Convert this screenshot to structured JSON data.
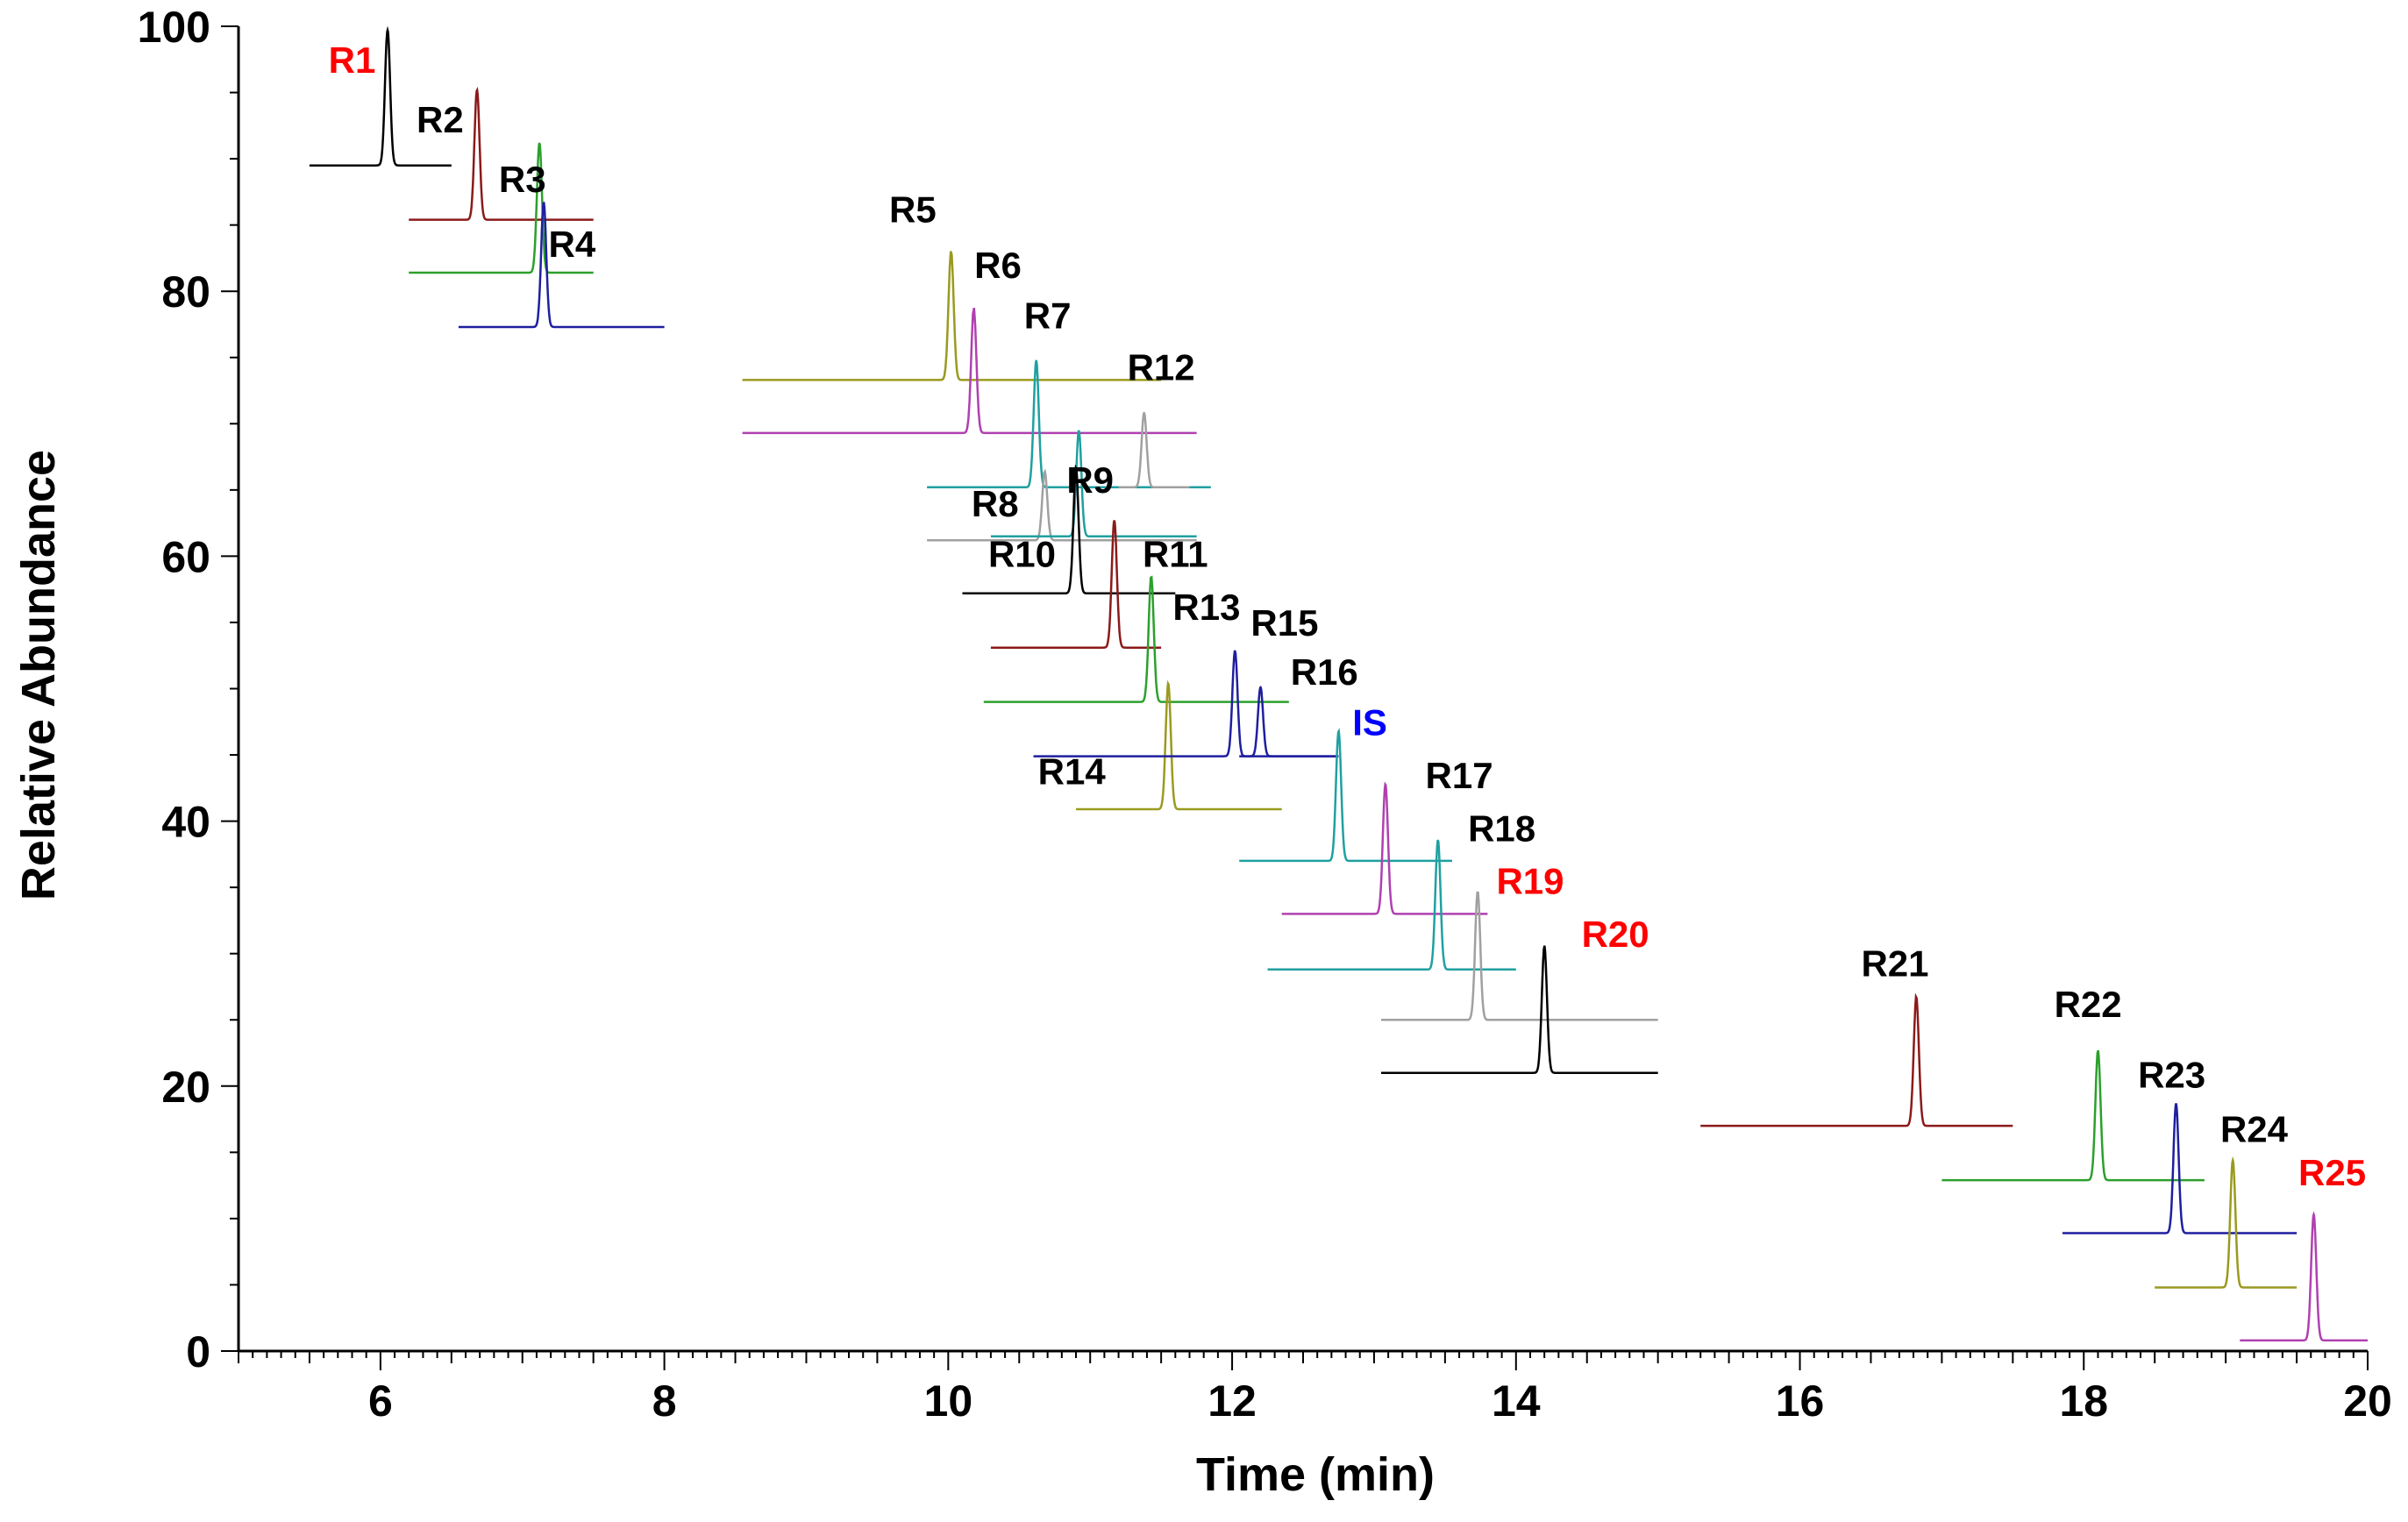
{
  "chart_data": {
    "type": "line",
    "title": "",
    "xlabel": "Time (min)",
    "ylabel": "Relative Abundance",
    "xlim": [
      5,
      20
    ],
    "ylim": [
      0,
      100
    ],
    "x_ticks": [
      6,
      8,
      10,
      12,
      14,
      16,
      18,
      20
    ],
    "y_ticks": [
      0,
      20,
      40,
      60,
      80,
      100
    ],
    "grid": false,
    "series": [
      {
        "name": "R1",
        "color": "#000000",
        "label_color": "#ff0000",
        "rt": 6.05,
        "baseline": 89.5,
        "height": 10.2,
        "x_start": 5.5,
        "x_end": 6.5,
        "label_x": 5.8,
        "label_y": 96.5
      },
      {
        "name": "R2",
        "color": "#8b1a1a",
        "label_color": "#000000",
        "rt": 6.68,
        "baseline": 85.4,
        "height": 9.8,
        "x_start": 6.2,
        "x_end": 7.5,
        "label_x": 6.42,
        "label_y": 92.0
      },
      {
        "name": "R3",
        "color": "#2ca02c",
        "label_color": "#000000",
        "rt": 7.12,
        "baseline": 81.4,
        "height": 9.8,
        "x_start": 6.2,
        "x_end": 7.5,
        "label_x": 7.0,
        "label_y": 87.5
      },
      {
        "name": "R4",
        "color": "#1f1f9f",
        "label_color": "#000000",
        "rt": 7.15,
        "baseline": 77.3,
        "height": 9.4,
        "x_start": 6.55,
        "x_end": 8.0,
        "label_x": 7.35,
        "label_y": 82.6
      },
      {
        "name": "R5",
        "color": "#9a9a20",
        "label_color": "#000000",
        "rt": 10.02,
        "baseline": 73.3,
        "height": 9.8,
        "x_start": 8.55,
        "x_end": 11.5,
        "label_x": 9.75,
        "label_y": 85.2
      },
      {
        "name": "R6",
        "color": "#b040b0",
        "label_color": "#000000",
        "rt": 10.18,
        "baseline": 69.3,
        "height": 9.5,
        "x_start": 8.55,
        "x_end": 11.75,
        "label_x": 10.35,
        "label_y": 81.0
      },
      {
        "name": "R7",
        "color": "#20a0a0",
        "label_color": "#000000",
        "rt": 10.62,
        "baseline": 65.2,
        "height": 9.6,
        "x_start": 9.85,
        "x_end": 11.85,
        "label_x": 10.7,
        "label_y": 77.2
      },
      {
        "name": "R8",
        "color": "#a0a0a0",
        "label_color": "#000000",
        "rt": 10.68,
        "baseline": 61.2,
        "height": 5.2,
        "x_start": 9.85,
        "x_end": 11.75,
        "label_x": 10.33,
        "label_y": 63.0
      },
      {
        "name": "R9",
        "color": "#20a0a0",
        "label_color": "#000000",
        "rt": 10.92,
        "baseline": 61.5,
        "height": 8.0,
        "x_start": 10.3,
        "x_end": 11.75,
        "label_x": 11.0,
        "label_y": 64.8
      },
      {
        "name": "R10",
        "color": "#000000",
        "label_color": "#000000",
        "rt": 10.9,
        "baseline": 57.2,
        "height": 9.5,
        "x_start": 10.1,
        "x_end": 11.6,
        "label_x": 10.52,
        "label_y": 59.2
      },
      {
        "name": "R11",
        "color": "#8b1a1a",
        "label_color": "#000000",
        "rt": 11.17,
        "baseline": 53.1,
        "height": 9.6,
        "x_start": 10.3,
        "x_end": 11.5,
        "label_x": 11.6,
        "label_y": 59.2
      },
      {
        "name": "R12",
        "color": "#a0a0a0",
        "label_color": "#000000",
        "rt": 11.38,
        "baseline": 65.2,
        "height": 5.6,
        "x_start": 11.2,
        "x_end": 11.7,
        "label_x": 11.5,
        "label_y": 73.3
      },
      {
        "name": "R13",
        "color": "#2ca02c",
        "label_color": "#000000",
        "rt": 11.43,
        "baseline": 49.0,
        "height": 9.5,
        "x_start": 10.25,
        "x_end": 12.4,
        "label_x": 11.82,
        "label_y": 55.2
      },
      {
        "name": "R14",
        "color": "#9a9a20",
        "label_color": "#000000",
        "rt": 11.55,
        "baseline": 40.9,
        "height": 9.5,
        "x_start": 10.9,
        "x_end": 12.35,
        "label_x": 10.87,
        "label_y": 42.8
      },
      {
        "name": "R15",
        "color": "#1f1f9f",
        "label_color": "#000000",
        "rt": 12.02,
        "baseline": 44.9,
        "height": 8.0,
        "x_start": 10.6,
        "x_end": 12.75,
        "label_x": 12.37,
        "label_y": 54.0
      },
      {
        "name": "R16",
        "color": "#1f1f9f",
        "label_color": "#000000",
        "rt": 12.2,
        "baseline": 44.9,
        "height": 5.2,
        "x_start": 12.05,
        "x_end": 12.75,
        "label_x": 12.65,
        "label_y": 50.3
      },
      {
        "name": "IS",
        "color": "#20a0a0",
        "label_color": "#0000ff",
        "rt": 12.75,
        "baseline": 37.0,
        "height": 9.8,
        "x_start": 12.05,
        "x_end": 13.55,
        "label_x": 12.97,
        "label_y": 46.5
      },
      {
        "name": "R17",
        "color": "#b040b0",
        "label_color": "#000000",
        "rt": 13.08,
        "baseline": 33.0,
        "height": 9.8,
        "x_start": 12.35,
        "x_end": 13.8,
        "label_x": 13.6,
        "label_y": 42.5
      },
      {
        "name": "R18",
        "color": "#20a0a0",
        "label_color": "#000000",
        "rt": 13.45,
        "baseline": 28.8,
        "height": 9.8,
        "x_start": 12.25,
        "x_end": 14.0,
        "label_x": 13.9,
        "label_y": 38.5
      },
      {
        "name": "R19",
        "color": "#a0a0a0",
        "label_color": "#ff0000",
        "rt": 13.73,
        "baseline": 25.0,
        "height": 9.7,
        "x_start": 13.05,
        "x_end": 15.0,
        "label_x": 14.1,
        "label_y": 34.5
      },
      {
        "name": "R20",
        "color": "#000000",
        "label_color": "#ff0000",
        "rt": 14.2,
        "baseline": 21.0,
        "height": 9.6,
        "x_start": 13.05,
        "x_end": 15.0,
        "label_x": 14.7,
        "label_y": 30.5
      },
      {
        "name": "R21",
        "color": "#8b1a1a",
        "label_color": "#000000",
        "rt": 16.82,
        "baseline": 17.0,
        "height": 9.8,
        "x_start": 15.3,
        "x_end": 17.5,
        "label_x": 16.67,
        "label_y": 28.3
      },
      {
        "name": "R22",
        "color": "#2ca02c",
        "label_color": "#000000",
        "rt": 18.1,
        "baseline": 12.9,
        "height": 9.8,
        "x_start": 17.0,
        "x_end": 18.85,
        "label_x": 18.03,
        "label_y": 25.2
      },
      {
        "name": "R23",
        "color": "#1f1f9f",
        "label_color": "#000000",
        "rt": 18.65,
        "baseline": 8.9,
        "height": 9.8,
        "x_start": 17.85,
        "x_end": 19.5,
        "label_x": 18.62,
        "label_y": 19.9
      },
      {
        "name": "R24",
        "color": "#9a9a20",
        "label_color": "#000000",
        "rt": 19.05,
        "baseline": 4.8,
        "height": 9.6,
        "x_start": 18.5,
        "x_end": 19.5,
        "label_x": 19.2,
        "label_y": 15.8
      },
      {
        "name": "R25",
        "color": "#b040b0",
        "label_color": "#ff0000",
        "rt": 19.62,
        "baseline": 0.8,
        "height": 9.5,
        "x_start": 19.1,
        "x_end": 20.0,
        "label_x": 19.75,
        "label_y": 12.5
      }
    ]
  }
}
